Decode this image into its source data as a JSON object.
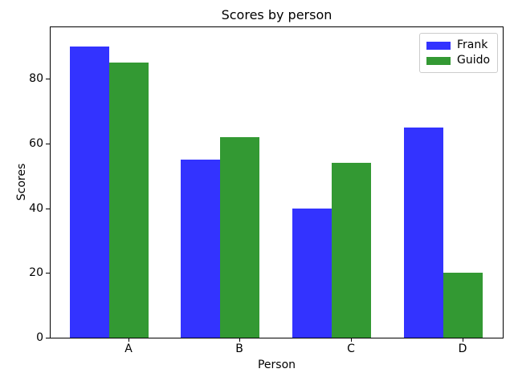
{
  "figure": {
    "background": "#ffffff",
    "axis_color": "#000000",
    "legend_border_color": "#cccccc"
  },
  "chart_data": {
    "type": "bar",
    "title": "Scores by person",
    "xlabel": "Person",
    "ylabel": "Scores",
    "categories": [
      "A",
      "B",
      "C",
      "D"
    ],
    "series": [
      {
        "name": "Frank",
        "color": "#3333ff",
        "values": [
          90,
          55,
          40,
          65
        ]
      },
      {
        "name": "Guido",
        "color": "#339933",
        "values": [
          85,
          62,
          54,
          20
        ]
      }
    ],
    "ylim": [
      0,
      96
    ],
    "yticks": [
      0,
      20,
      40,
      60,
      80
    ],
    "grid": false,
    "legend_position": "upper right"
  }
}
